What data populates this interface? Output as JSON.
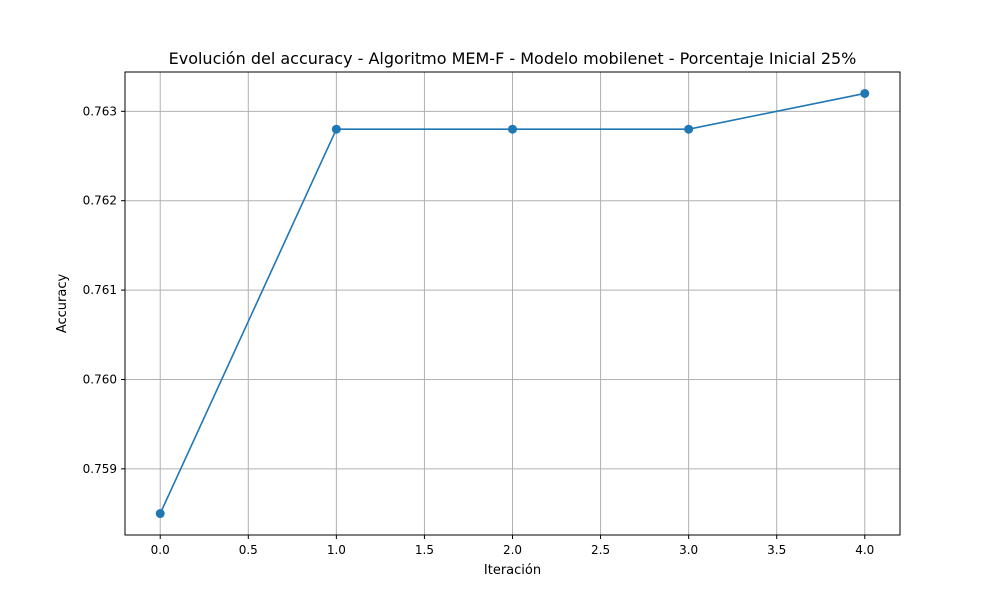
{
  "chart_data": {
    "type": "line",
    "title": "Evolución del accuracy - Algoritmo MEM-F - Modelo mobilenet - Porcentaje Inicial 25%",
    "xlabel": "Iteración",
    "ylabel": "Accuracy",
    "x": [
      0,
      1,
      2,
      3,
      4
    ],
    "series": [
      {
        "values": [
          0.7585,
          0.7628,
          0.7628,
          0.7628,
          0.7632
        ]
      }
    ],
    "xlim": [
      -0.2,
      4.2
    ],
    "ylim": [
      0.75826,
      0.76344
    ],
    "xticks": [
      0.0,
      0.5,
      1.0,
      1.5,
      2.0,
      2.5,
      3.0,
      3.5,
      4.0
    ],
    "xtick_labels": [
      "0.0",
      "0.5",
      "1.0",
      "1.5",
      "2.0",
      "2.5",
      "3.0",
      "3.5",
      "4.0"
    ],
    "yticks": [
      0.759,
      0.76,
      0.761,
      0.762,
      0.763
    ],
    "ytick_labels": [
      "0.759",
      "0.760",
      "0.761",
      "0.762",
      "0.763"
    ],
    "grid": true,
    "marker": "circle",
    "line_color": "#1f77b4",
    "grid_color": "#b0b0b0"
  }
}
